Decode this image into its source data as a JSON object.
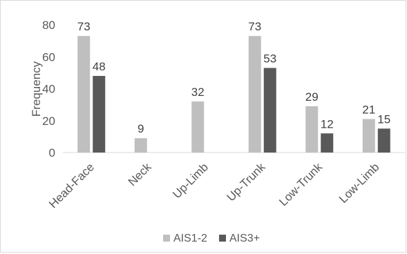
{
  "chart_data": {
    "type": "bar",
    "title": "",
    "xlabel": "",
    "ylabel": "Frequency",
    "ylim": [
      0,
      80
    ],
    "yticks": [
      0,
      20,
      40,
      60,
      80
    ],
    "categories": [
      "Head-Face",
      "Neck",
      "Up-Limb",
      "Up-Trunk",
      "Low-Trunk",
      "Low-Limb"
    ],
    "series": [
      {
        "name": "AIS1-2",
        "color": "#bfbfbf",
        "values": [
          73,
          9,
          32,
          73,
          29,
          21
        ]
      },
      {
        "name": "AIS3+",
        "color": "#595959",
        "values": [
          48,
          null,
          null,
          53,
          12,
          15
        ]
      }
    ],
    "data_labels": true,
    "grid": false,
    "legend": "bottom"
  }
}
